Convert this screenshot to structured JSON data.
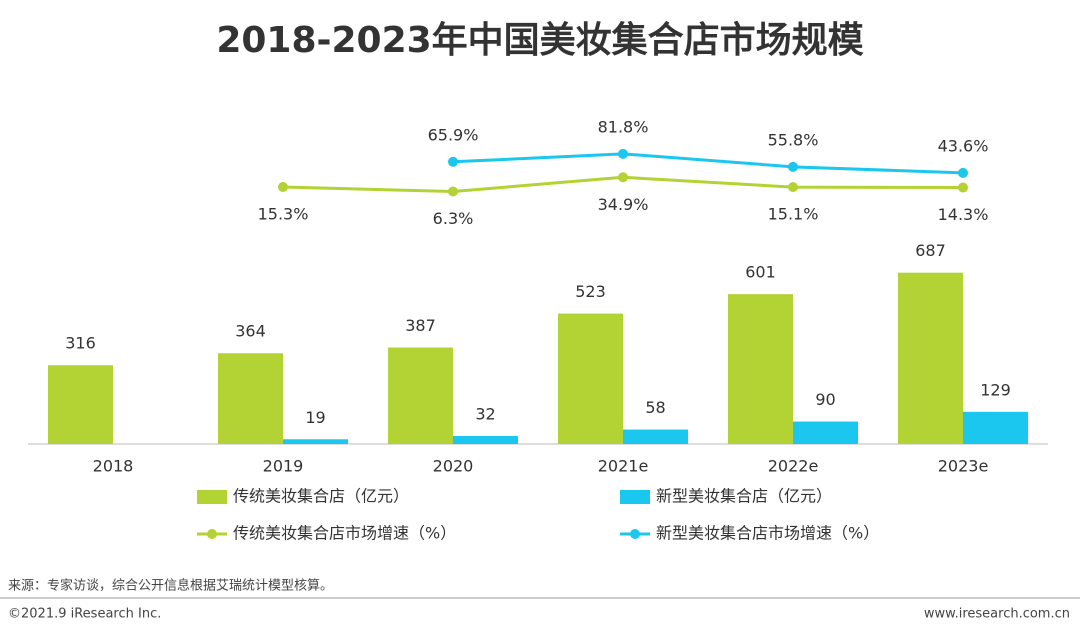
{
  "chart_data": {
    "type": "bar",
    "title": "2018-2023年中国美妆集合店市场规模",
    "categories": [
      "2018",
      "2019",
      "2020",
      "2021e",
      "2022e",
      "2023e"
    ],
    "ylim": [
      0,
      1500
    ],
    "y2lim": [
      -500,
      250
    ],
    "series": [
      {
        "name": "传统美妆集合店（亿元）",
        "type": "bar",
        "color": "#b3d233",
        "values": [
          316,
          364,
          387,
          523,
          601,
          687
        ]
      },
      {
        "name": "新型美妆集合店（亿元）",
        "type": "bar",
        "color": "#1cc7ef",
        "values": [
          null,
          19,
          32,
          58,
          90,
          129
        ]
      },
      {
        "name": "传统美妆集合店市场增速（%）",
        "type": "line",
        "axis": "y2",
        "color": "#b3d233",
        "values": [
          null,
          15.3,
          6.3,
          34.9,
          15.1,
          14.3
        ],
        "value_labels": [
          null,
          "15.3%",
          "6.3%",
          "34.9%",
          "15.1%",
          "14.3%"
        ]
      },
      {
        "name": "新型美妆集合店市场增速（%）",
        "type": "line",
        "axis": "y2",
        "color": "#1cc7ef",
        "values": [
          null,
          null,
          65.9,
          81.8,
          55.8,
          43.6
        ],
        "value_labels": [
          null,
          null,
          "65.9%",
          "81.8%",
          "55.8%",
          "43.6%"
        ]
      }
    ]
  },
  "source": "来源：专家访谈，综合公开信息根据艾瑞统计模型核算。",
  "copyright": "©2021.9 iResearch Inc.",
  "website": "www.iresearch.com.cn"
}
